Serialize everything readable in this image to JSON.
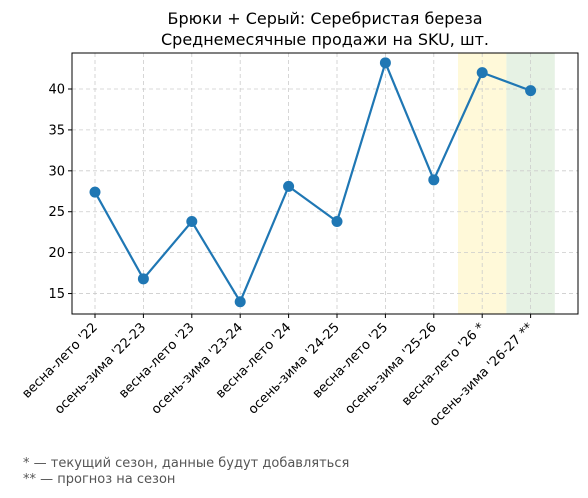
{
  "chart_data": {
    "type": "line",
    "title": "Брюки + Серый: Серебристая береза",
    "subtitle": "Среднемесячные продажи на SKU, шт.",
    "xlabel": "",
    "ylabel": "",
    "categories": [
      "весна-лето '22",
      "осень-зима '22-23",
      "весна-лето '23",
      "осень-зима '23-24",
      "весна-лето '24",
      "осень-зима '24-25",
      "весна-лето '25",
      "осень-зима '25-26",
      "весна-лето '26 *",
      "осень-зима '26-27 **"
    ],
    "series": [
      {
        "values": [
          27.4,
          16.8,
          23.8,
          14.0,
          28.1,
          23.8,
          43.2,
          28.9,
          42.0,
          39.8
        ]
      }
    ],
    "ylim": [
      12.5,
      44.4
    ],
    "yticks": [
      15,
      20,
      25,
      30,
      35,
      40
    ],
    "grid": true,
    "highlights": [
      {
        "category": "весна-лето '26 *",
        "color": "#fff9d9"
      },
      {
        "category": "осень-зима '26-27 **",
        "color": "#e6f2e4"
      }
    ],
    "line_color": "#1f77b4"
  },
  "footnotes": [
    "* — текущий сезон, данные будут добавляться",
    "** — прогноз на сезон"
  ]
}
